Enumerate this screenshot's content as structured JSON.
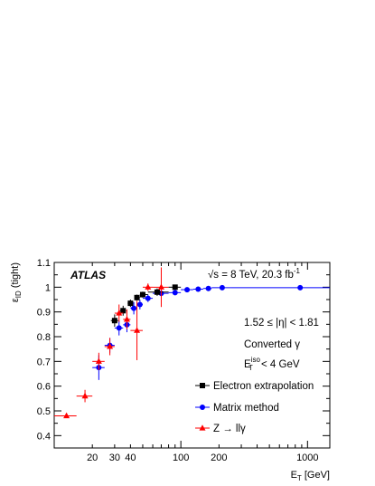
{
  "chart_data": {
    "type": "scatter",
    "title": "",
    "xlabel": "E_T [GeV]",
    "ylabel": "ε_ID (tight)",
    "xscale": "log",
    "xlim": [
      10,
      1500
    ],
    "ylim": [
      0.35,
      1.1
    ],
    "x_ticks": [
      {
        "value": 20,
        "label": "20"
      },
      {
        "value": 30,
        "label": "30"
      },
      {
        "value": 40,
        "label": "40"
      },
      {
        "value": 100,
        "label": "100"
      },
      {
        "value": 200,
        "label": "200"
      },
      {
        "value": 1000,
        "label": "1000"
      }
    ],
    "y_ticks": [
      {
        "value": 0.4,
        "label": "0.4"
      },
      {
        "value": 0.5,
        "label": "0.5"
      },
      {
        "value": 0.6,
        "label": "0.6"
      },
      {
        "value": 0.7,
        "label": "0.7"
      },
      {
        "value": 0.8,
        "label": "0.8"
      },
      {
        "value": 0.9,
        "label": "0.9"
      },
      {
        "value": 1.0,
        "label": "1"
      },
      {
        "value": 1.1,
        "label": "1.1"
      }
    ],
    "annotations": {
      "experiment": "ATLAS",
      "energy": "√s = 8 TeV, 20.3 fb",
      "energy_sup": "-1",
      "eta_range": "1.52 ≤ |η| < 1.81",
      "category": "Converted γ",
      "iso_main": "E",
      "iso_sub": "T",
      "iso_sup": "iso",
      "iso_rest": " < 4 GeV"
    },
    "legend_position": "bottom-right",
    "series": [
      {
        "name": "Electron extrapolation",
        "color": "#000000",
        "marker": "square",
        "points": [
          {
            "x": 30,
            "xlo": 28,
            "xhi": 32,
            "y": 0.865,
            "err": 0.025
          },
          {
            "x": 35,
            "xlo": 33,
            "xhi": 37,
            "y": 0.905,
            "err": 0.02
          },
          {
            "x": 40,
            "xlo": 38,
            "xhi": 42,
            "y": 0.935,
            "err": 0.015
          },
          {
            "x": 45,
            "xlo": 43,
            "xhi": 47.5,
            "y": 0.958,
            "err": 0.012
          },
          {
            "x": 50,
            "xlo": 47.5,
            "xhi": 55,
            "y": 0.97,
            "err": 0.012
          },
          {
            "x": 65,
            "xlo": 55,
            "xhi": 80,
            "y": 0.98,
            "err": 0.015
          },
          {
            "x": 90,
            "xlo": 80,
            "xhi": 100,
            "y": 1.0,
            "err": 0.01
          }
        ]
      },
      {
        "name": "Matrix method",
        "color": "#0000ff",
        "marker": "circle",
        "points": [
          {
            "x": 22.5,
            "xlo": 20,
            "xhi": 25,
            "y": 0.675,
            "err": 0.05
          },
          {
            "x": 27.5,
            "xlo": 25,
            "xhi": 30,
            "y": 0.765,
            "err": 0.03
          },
          {
            "x": 32.5,
            "xlo": 30,
            "xhi": 35,
            "y": 0.835,
            "err": 0.03
          },
          {
            "x": 37.5,
            "xlo": 35,
            "xhi": 40,
            "y": 0.848,
            "err": 0.03
          },
          {
            "x": 42.5,
            "xlo": 40,
            "xhi": 45,
            "y": 0.915,
            "err": 0.025
          },
          {
            "x": 47.5,
            "xlo": 45,
            "xhi": 50,
            "y": 0.93,
            "err": 0.02
          },
          {
            "x": 55,
            "xlo": 50,
            "xhi": 60,
            "y": 0.955,
            "err": 0.015
          },
          {
            "x": 70,
            "xlo": 60,
            "xhi": 80,
            "y": 0.975,
            "err": 0.012
          },
          {
            "x": 90,
            "xlo": 80,
            "xhi": 100,
            "y": 0.978,
            "err": 0.01
          },
          {
            "x": 112,
            "xlo": 100,
            "xhi": 125,
            "y": 0.99,
            "err": 0.005
          },
          {
            "x": 137,
            "xlo": 125,
            "xhi": 150,
            "y": 0.992,
            "err": 0.004
          },
          {
            "x": 165,
            "xlo": 150,
            "xhi": 175,
            "y": 0.995,
            "err": 0.004
          },
          {
            "x": 212,
            "xlo": 175,
            "xhi": 250,
            "y": 0.998,
            "err": 0.003
          },
          {
            "x": 875,
            "xlo": 250,
            "xhi": 1500,
            "y": 0.998,
            "err": 0.003
          }
        ]
      },
      {
        "name": "Z → llγ",
        "color": "#ff0000",
        "marker": "triangle",
        "points": [
          {
            "x": 12.5,
            "xlo": 10,
            "xhi": 15,
            "y": 0.48,
            "err": 0.008
          },
          {
            "x": 17.5,
            "xlo": 15,
            "xhi": 20,
            "y": 0.56,
            "err": 0.025
          },
          {
            "x": 22.5,
            "xlo": 20,
            "xhi": 25,
            "y": 0.7,
            "err": 0.035
          },
          {
            "x": 27.5,
            "xlo": 25,
            "xhi": 30,
            "y": 0.76,
            "err": 0.035
          },
          {
            "x": 32.5,
            "xlo": 30,
            "xhi": 35,
            "y": 0.895,
            "err": 0.035
          },
          {
            "x": 37.5,
            "xlo": 35,
            "xhi": 40,
            "y": 0.87,
            "err": 0.04
          },
          {
            "x": 45,
            "xlo": 40,
            "xhi": 50,
            "y": 0.825,
            "err": 0.12
          },
          {
            "x": 55,
            "xlo": 50,
            "xhi": 60,
            "y": 1.0,
            "err": 0.015
          },
          {
            "x": 70,
            "xlo": 60,
            "xhi": 80,
            "y": 1.0,
            "err": 0.08
          }
        ]
      }
    ]
  }
}
